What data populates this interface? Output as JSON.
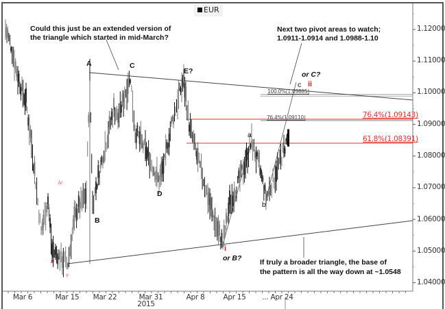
{
  "legend": {
    "label": "EUR",
    "swatch_color": "#111111"
  },
  "annotations": {
    "top_left_line1": "Could this just be an extended version of",
    "top_left_line2": "the triangle which started in mid-March?",
    "top_right_line1": "Next two pivot areas to watch;",
    "top_right_line2": "1.0911-1.0914 and 1.0988-1.10",
    "bottom_right_line1": "If truly a broader triangle, the base of",
    "bottom_right_line2": "the pattern is all the way down at ~1.0548"
  },
  "wave_labels": {
    "A": "A",
    "B": "B",
    "C": "C",
    "D": "D",
    "E": "E?",
    "a": "a",
    "b": "b",
    "c": "c",
    "ii": "ii",
    "or_C": "or C?",
    "i": "i",
    "or_B": "or B?",
    "iii": "iii",
    "iv": "iv",
    "v": "v"
  },
  "fib_levels": {
    "small_100": "100.0%(1.09885)",
    "small_764": "76.4%(1.09110)",
    "red_764": "76.4%(1.09143)",
    "red_618": "61.8%(1.08391)"
  },
  "colors": {
    "fib_red": "#e03030",
    "wave_red": "#e02020",
    "price_dark": "#111111",
    "price_gray": "#777777",
    "trendline": "#444444"
  },
  "chart_data": {
    "type": "line",
    "title": "EUR",
    "instrument": "EUR",
    "xlabel": "2015",
    "ylabel": "",
    "ylim": [
      1.035,
      1.127
    ],
    "y_ticks": [
      "1.12000",
      "1.11000",
      "1.10000",
      "1.09000",
      "1.08000",
      "1.07000",
      "1.06000",
      "1.05000",
      "1.04000"
    ],
    "x_ticks": [
      "Mar 6",
      "Mar 15",
      "Mar 22",
      "Mar 31",
      "Apr 8",
      "Apr 15",
      "... Apr 24"
    ],
    "x_year_label": "2015",
    "grid": false,
    "legend_position": "top-center",
    "series": [
      {
        "name": "EUR",
        "points": [
          [
            "Mar 3",
            1.12
          ],
          [
            "Mar 4",
            1.115
          ],
          [
            "Mar 5",
            1.105
          ],
          [
            "Mar 6",
            1.097
          ],
          [
            "Mar 9",
            1.084
          ],
          [
            "Mar 10",
            1.072
          ],
          [
            "Mar 11",
            1.056
          ],
          [
            "Mar 12",
            1.066
          ],
          [
            "Mar 13",
            1.05
          ],
          [
            "Mar 16",
            1.046
          ],
          [
            "Mar 17",
            1.062
          ],
          [
            "Mar 18",
            1.068
          ],
          [
            "Mar 18b",
            1.106
          ],
          [
            "Mar 19",
            1.065
          ],
          [
            "Mar 20",
            1.08
          ],
          [
            "Mar 23",
            1.095
          ],
          [
            "Mar 24",
            1.092
          ],
          [
            "Mar 26",
            1.105
          ],
          [
            "Mar 27",
            1.088
          ],
          [
            "Mar 30",
            1.082
          ],
          [
            "Mar 31",
            1.072
          ],
          [
            "Apr 1",
            1.078
          ],
          [
            "Apr 2",
            1.09
          ],
          [
            "Apr 3",
            1.1
          ],
          [
            "Apr 6",
            1.104
          ],
          [
            "Apr 7",
            1.09
          ],
          [
            "Apr 8",
            1.08
          ],
          [
            "Apr 9",
            1.07
          ],
          [
            "Apr 10",
            1.06
          ],
          [
            "Apr 13",
            1.052
          ],
          [
            "Apr 14",
            1.065
          ],
          [
            "Apr 15",
            1.07
          ],
          [
            "Apr 16",
            1.078
          ],
          [
            "Apr 17",
            1.0845
          ],
          [
            "Apr 20",
            1.075
          ],
          [
            "Apr 21",
            1.0665
          ],
          [
            "Apr 22",
            1.072
          ],
          [
            "Apr 23",
            1.078
          ],
          [
            "Apr 24",
            1.086
          ]
        ]
      }
    ],
    "trendlines": [
      {
        "name": "triangle-upper",
        "from": [
          "Mar 18",
          1.1062
        ],
        "to": [
          "right-edge",
          1.0975
        ]
      },
      {
        "name": "triangle-lower",
        "from": [
          "Mar 16",
          1.0462
        ],
        "to": [
          "right-edge",
          1.06
        ]
      }
    ],
    "fibonacci": [
      {
        "label": "100.0%",
        "value": 1.09885,
        "color": "#888888"
      },
      {
        "label": "76.4%",
        "value": 1.0911,
        "color": "#888888"
      },
      {
        "label": "76.4%",
        "value": 1.09143,
        "color": "#e03030"
      },
      {
        "label": "61.8%",
        "value": 1.08391,
        "color": "#e03030"
      }
    ],
    "target_base": 1.0548
  }
}
